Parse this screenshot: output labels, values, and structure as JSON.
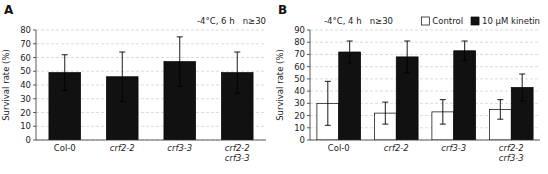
{
  "chart_data": [
    {
      "type": "bar",
      "title": "A",
      "annotation": "-4°C, 6 h   n≥30",
      "ylabel": "Survival rate (%)",
      "categories": [
        "Col-0",
        "crf2-2",
        "crf3-3",
        "crf2-2\ncrf3-3"
      ],
      "values": [
        49,
        46,
        57,
        49
      ],
      "errors": [
        13,
        18,
        18,
        15
      ],
      "color": "#111111",
      "ylim": [
        0,
        80
      ],
      "yticks": [
        0,
        10,
        20,
        30,
        40,
        50,
        60,
        70,
        80
      ],
      "grid": true
    },
    {
      "type": "bar",
      "title": "B",
      "annotation": "-4°C, 4 h   n≥30",
      "ylabel": "Survival rate (%)",
      "categories": [
        "Col-0",
        "crf2-2",
        "crf3-3",
        "crf2-2\ncrf3-3"
      ],
      "series": [
        {
          "name": "Control",
          "color": "#ffffff",
          "values": [
            30,
            22,
            23,
            25
          ],
          "errors": [
            18,
            9,
            10,
            8
          ]
        },
        {
          "name": "10 μM kinetin",
          "color": "#111111",
          "values": [
            72,
            68,
            73,
            43
          ],
          "errors": [
            9,
            13,
            8,
            11
          ]
        }
      ],
      "ylim": [
        0,
        90
      ],
      "yticks": [
        0,
        10,
        20,
        30,
        40,
        50,
        60,
        70,
        80,
        90
      ],
      "grid": true,
      "legend": "upper right"
    }
  ]
}
